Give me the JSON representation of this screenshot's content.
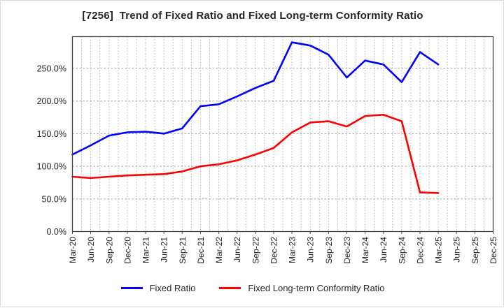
{
  "title": "[7256]  Trend of Fixed Ratio and Fixed Long-term Conformity Ratio",
  "chart_data": {
    "type": "line",
    "categories": [
      "Mar-20",
      "Jun-20",
      "Sep-20",
      "Dec-20",
      "Mar-21",
      "Jun-21",
      "Sep-21",
      "Dec-21",
      "Mar-22",
      "Jun-22",
      "Sep-22",
      "Dec-22",
      "Mar-23",
      "Jun-23",
      "Sep-23",
      "Dec-23",
      "Mar-24",
      "Jun-24",
      "Sep-24",
      "Dec-24",
      "Mar-25",
      "Jun-25",
      "Sep-25",
      "Dec-25"
    ],
    "series": [
      {
        "name": "Fixed Ratio",
        "color": "#0000ff",
        "values": [
          118,
          132,
          147,
          152,
          153,
          150,
          158,
          192,
          195,
          207,
          220,
          231,
          290,
          285,
          271,
          236,
          262,
          256,
          229,
          275,
          256
        ]
      },
      {
        "name": "Fixed Long-term Conformity Ratio",
        "color": "#ff0000",
        "values": [
          84,
          82,
          84,
          86,
          87,
          88,
          92,
          100,
          103,
          109,
          118,
          128,
          152,
          167,
          169,
          161,
          177,
          179,
          169,
          60,
          59
        ]
      }
    ],
    "yticks": [
      {
        "value": 0,
        "label": "0.0%"
      },
      {
        "value": 50,
        "label": "50.0%"
      },
      {
        "value": 100,
        "label": "100.0%"
      },
      {
        "value": 150,
        "label": "150.0%"
      },
      {
        "value": 200,
        "label": "200.0%"
      },
      {
        "value": 250,
        "label": "250.0%"
      }
    ],
    "ylim": [
      0,
      298.6
    ],
    "grid": true,
    "legend_position": "bottom",
    "xlabel": "",
    "ylabel": ""
  },
  "style": {
    "spine_color": "#444444",
    "h_grid_color": "#999999",
    "v_grid_color": "#aaaaaa",
    "tick_label_color": "#262626"
  }
}
